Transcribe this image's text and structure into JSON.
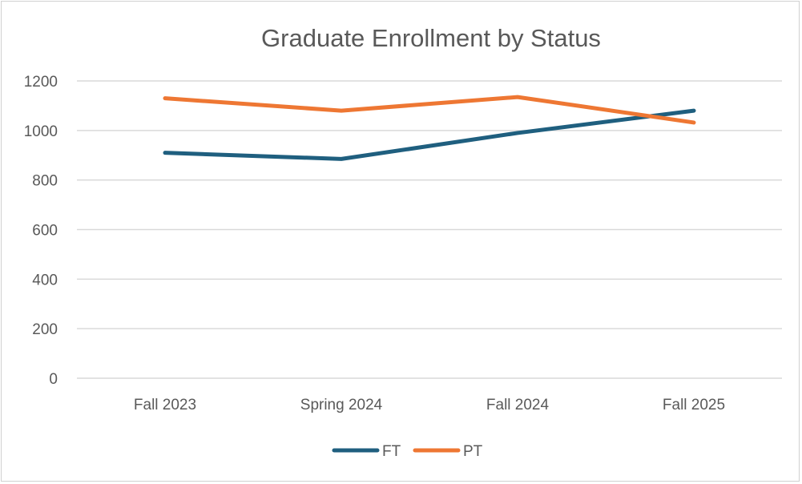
{
  "chart_data": {
    "type": "line",
    "title": "Graduate Enrollment by Status",
    "categories": [
      "Fall 2023",
      "Spring 2024",
      "Fall 2024",
      "Fall 2025"
    ],
    "series": [
      {
        "name": "FT",
        "values": [
          910,
          885,
          990,
          1080
        ],
        "color": "#1f5f7f"
      },
      {
        "name": "PT",
        "values": [
          1130,
          1080,
          1135,
          1032
        ],
        "color": "#ee7733"
      }
    ],
    "ylim": [
      0,
      1200
    ],
    "yticks": [
      0,
      200,
      400,
      600,
      800,
      1000,
      1200
    ],
    "grid": true,
    "legend": "bottom"
  }
}
